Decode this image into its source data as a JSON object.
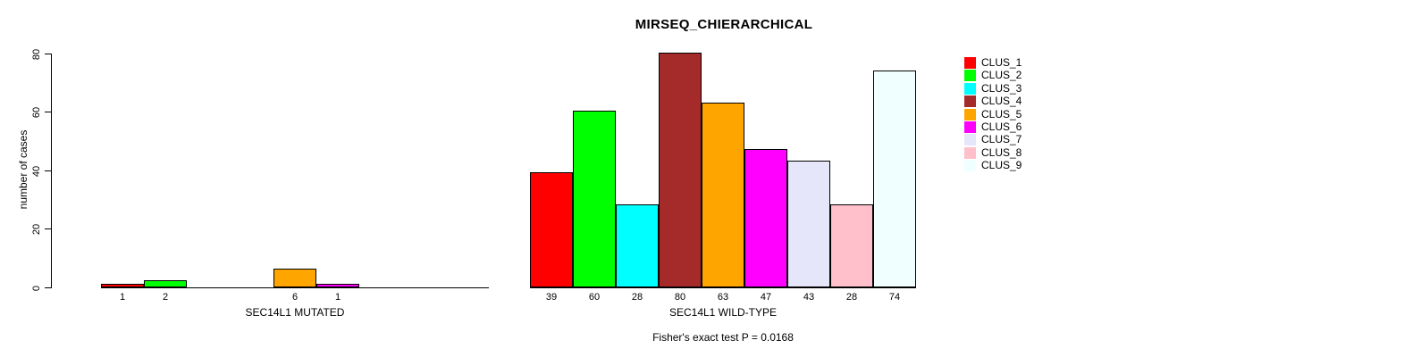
{
  "title": "MIRSEQ_CHIERARCHICAL",
  "y_axis": {
    "label": "number of cases",
    "ticks": [
      0,
      20,
      40,
      60,
      80
    ],
    "range": [
      0,
      80
    ]
  },
  "legend": {
    "position": "right",
    "items": [
      {
        "label": "CLUS_1",
        "color": "#FF0000"
      },
      {
        "label": "CLUS_2",
        "color": "#00FF00"
      },
      {
        "label": "CLUS_3",
        "color": "#00FFFF"
      },
      {
        "label": "CLUS_4",
        "color": "#A52A2A"
      },
      {
        "label": "CLUS_5",
        "color": "#FFA500"
      },
      {
        "label": "CLUS_6",
        "color": "#FF00FF"
      },
      {
        "label": "CLUS_7",
        "color": "#E6E6FA"
      },
      {
        "label": "CLUS_8",
        "color": "#FFC0CB"
      },
      {
        "label": "CLUS_9",
        "color": "#F0FFFF"
      }
    ]
  },
  "chart_data": [
    {
      "type": "bar",
      "title": "MIRSEQ_CHIERARCHICAL",
      "xlabel": "SEC14L1 MUTATED",
      "ylabel": "number of cases",
      "categories": [
        "CLUS_1",
        "CLUS_2",
        "CLUS_3",
        "CLUS_4",
        "CLUS_5",
        "CLUS_6",
        "CLUS_7",
        "CLUS_8",
        "CLUS_9"
      ],
      "values": [
        1,
        2,
        0,
        0,
        6,
        1,
        0,
        0,
        0
      ],
      "value_labels": [
        "1",
        "2",
        "",
        "",
        "6",
        "1",
        "",
        "",
        ""
      ],
      "ylim": [
        0,
        80
      ],
      "grid": false,
      "legend_position": "right"
    },
    {
      "type": "bar",
      "title": "MIRSEQ_CHIERARCHICAL",
      "xlabel": "SEC14L1 WILD-TYPE",
      "ylabel": "number of cases",
      "categories": [
        "CLUS_1",
        "CLUS_2",
        "CLUS_3",
        "CLUS_4",
        "CLUS_5",
        "CLUS_6",
        "CLUS_7",
        "CLUS_8",
        "CLUS_9"
      ],
      "values": [
        39,
        60,
        28,
        80,
        63,
        47,
        43,
        28,
        74
      ],
      "value_labels": [
        "39",
        "60",
        "28",
        "80",
        "63",
        "47",
        "43",
        "28",
        "74"
      ],
      "ylim": [
        0,
        80
      ],
      "grid": false,
      "legend_position": "right"
    }
  ],
  "footer_note": "Fisher's exact test P = 0.0168"
}
